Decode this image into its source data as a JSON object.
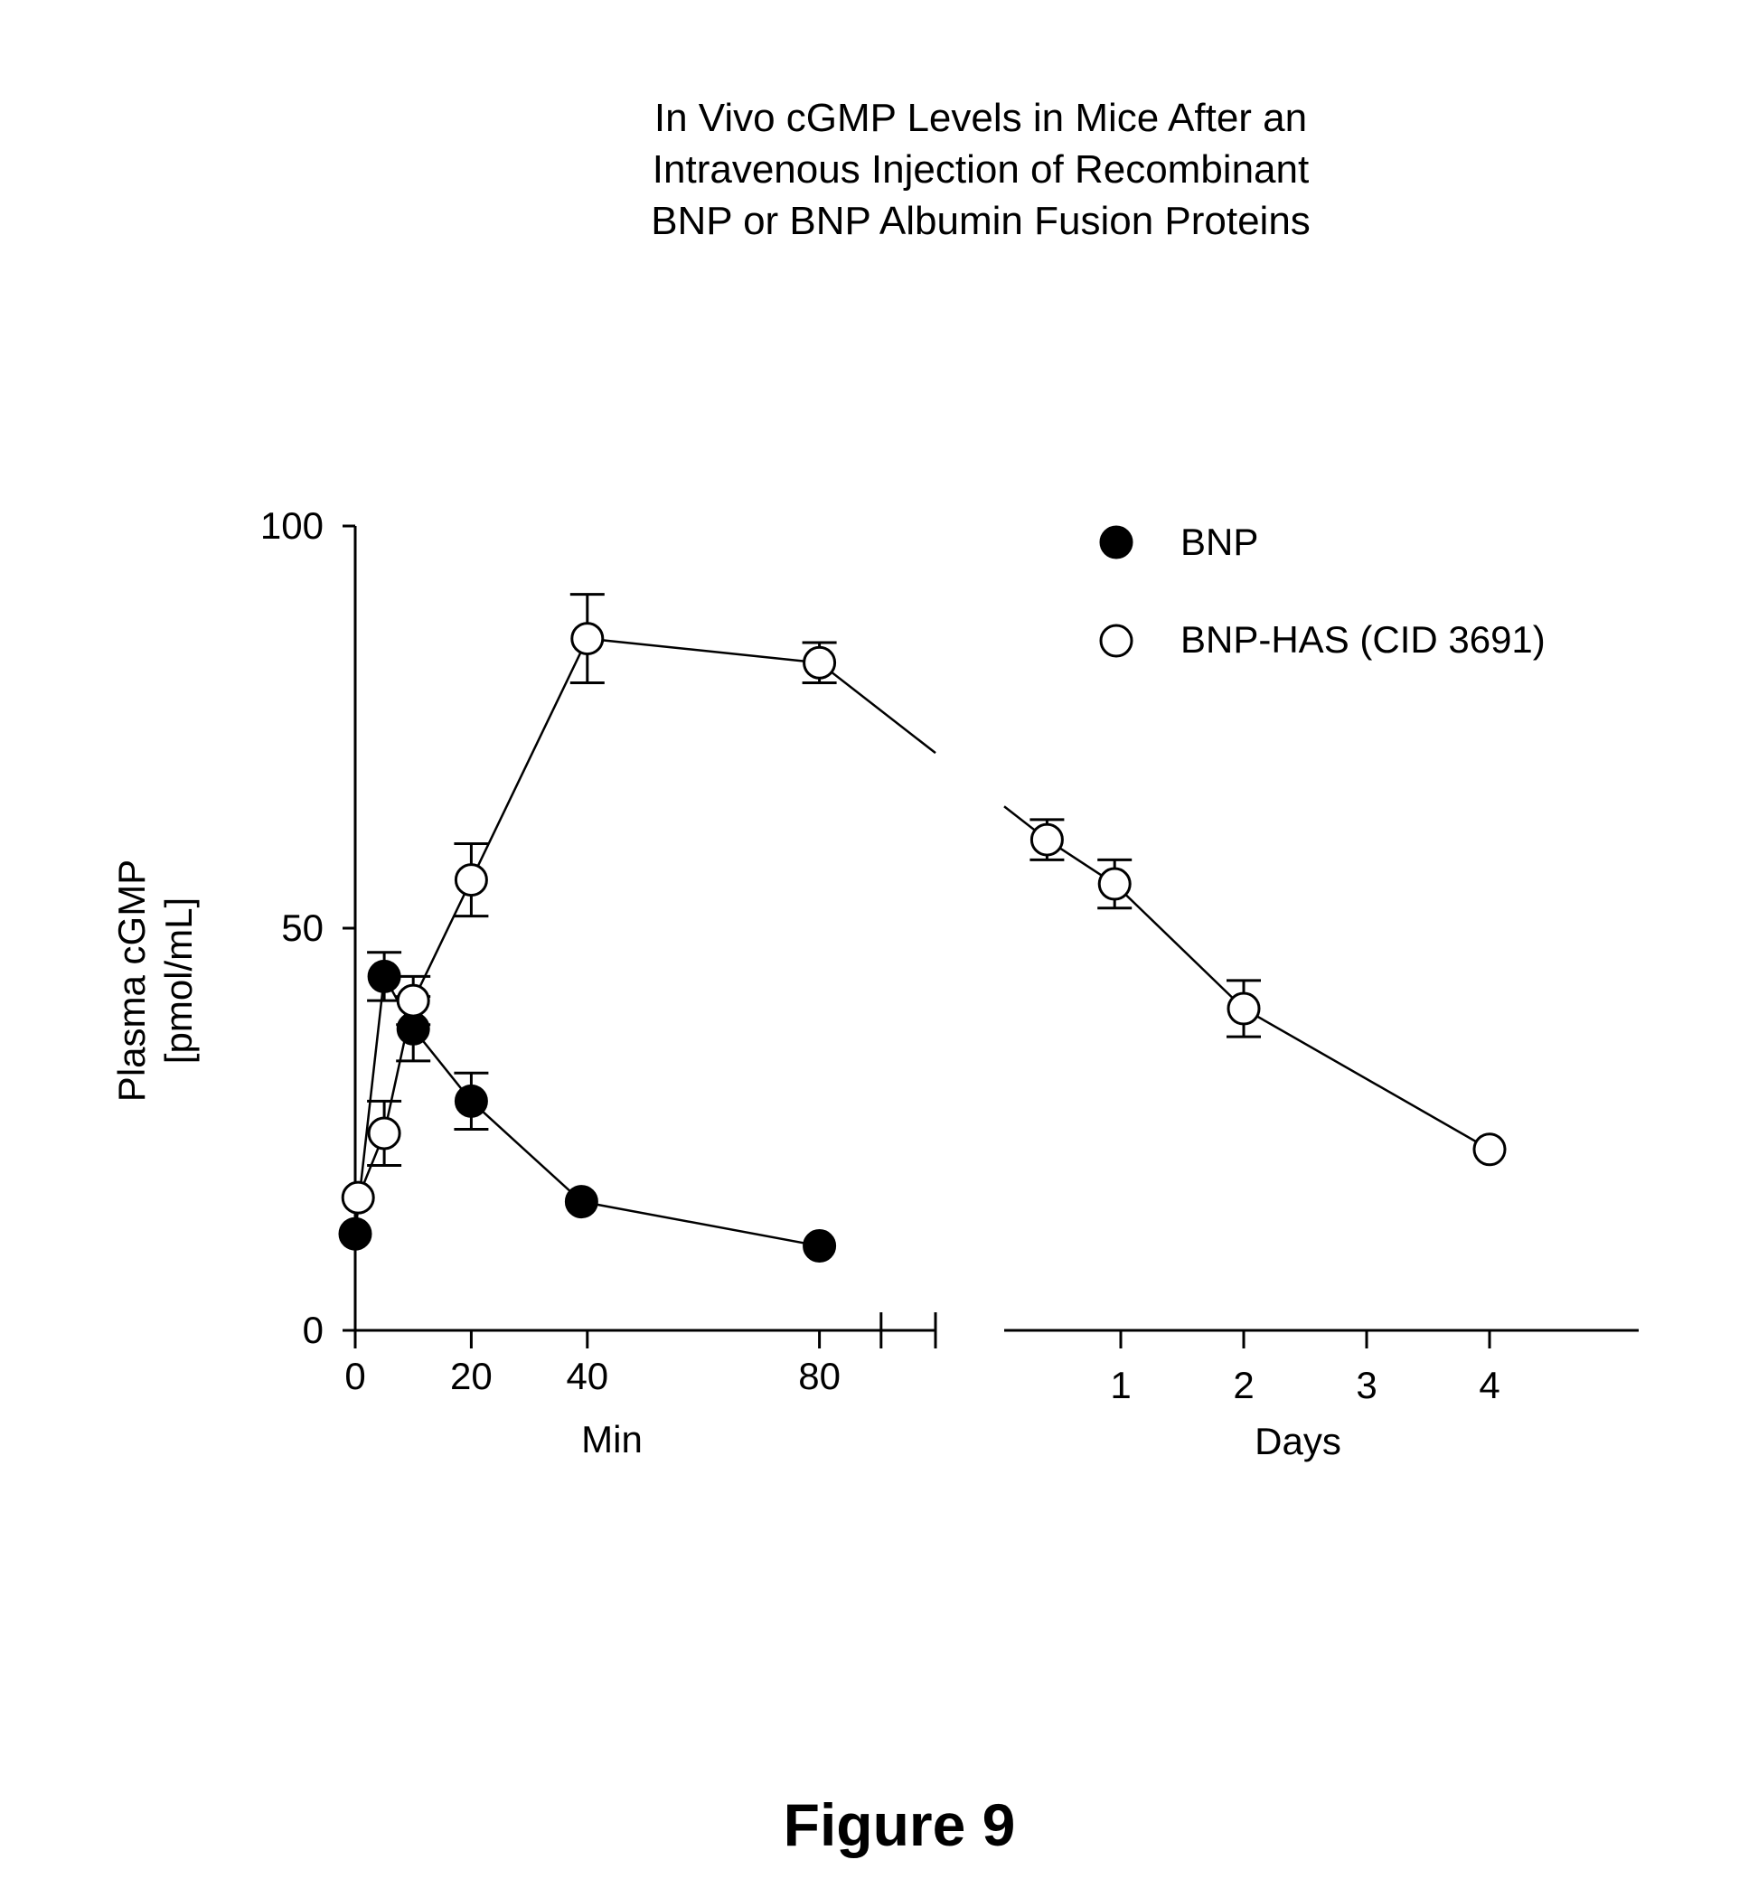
{
  "chart_data": {
    "type": "scatter",
    "title_lines": [
      "In Vivo cGMP Levels in Mice After an",
      "Intravenous Injection of Recombinant",
      "BNP or BNP Albumin Fusion Proteins"
    ],
    "ylabel_lines": [
      "Plasma cGMP",
      "[pmol/mL]"
    ],
    "ylim": [
      0,
      100
    ],
    "yticks": [
      "0",
      "50",
      "100"
    ],
    "x_segments": [
      {
        "xlabel": "Min",
        "unit": "min",
        "xlim": [
          0,
          100
        ],
        "ticks": [
          0,
          20,
          40,
          80,
          100
        ],
        "tick_labels": [
          "0",
          "20",
          "40",
          "80",
          ""
        ]
      },
      {
        "xlabel": "Days",
        "unit": "day",
        "xlim": [
          -0.95,
          4.2
        ],
        "ticks": [
          -0.95,
          1,
          2,
          3,
          4
        ],
        "tick_labels": [
          "",
          "1",
          "2",
          "3",
          "4"
        ]
      }
    ],
    "series": [
      {
        "name": "BNP",
        "marker": "filled-circle",
        "points": [
          {
            "segment": 0,
            "x": 0,
            "y": 12,
            "err": null
          },
          {
            "segment": 0,
            "x": 5,
            "y": 44,
            "err": 3
          },
          {
            "segment": 0,
            "x": 10,
            "y": 37.5,
            "err": 4
          },
          {
            "segment": 0,
            "x": 20,
            "y": 28.5,
            "err": 3.5
          },
          {
            "segment": 0,
            "x": 39,
            "y": 16,
            "err": null
          },
          {
            "segment": 0,
            "x": 80,
            "y": 10.5,
            "err": null
          }
        ]
      },
      {
        "name": "BNP-HAS (CID 3691)",
        "marker": "open-circle",
        "points": [
          {
            "segment": 0,
            "x": 0.5,
            "y": 16.5,
            "err": null
          },
          {
            "segment": 0,
            "x": 5,
            "y": 24.5,
            "err": 4
          },
          {
            "segment": 0,
            "x": 10,
            "y": 41,
            "err": 3
          },
          {
            "segment": 0,
            "x": 20,
            "y": 56,
            "err": 4.5
          },
          {
            "segment": 0,
            "x": 40,
            "y": 86,
            "err": 5.5
          },
          {
            "segment": 0,
            "x": 80,
            "y": 83,
            "err": 2.5
          },
          {
            "segment": 1,
            "x": 0.4,
            "y": 61,
            "err": 2.5
          },
          {
            "segment": 1,
            "x": 0.95,
            "y": 55.5,
            "err": 3
          },
          {
            "segment": 1,
            "x": 2,
            "y": 40,
            "err": 3.5
          },
          {
            "segment": 1,
            "x": 4,
            "y": 22.5,
            "err": null
          }
        ]
      }
    ],
    "legend_position": "top-right",
    "grid": false,
    "axis_break": true
  },
  "figure_label": "Figure 9"
}
